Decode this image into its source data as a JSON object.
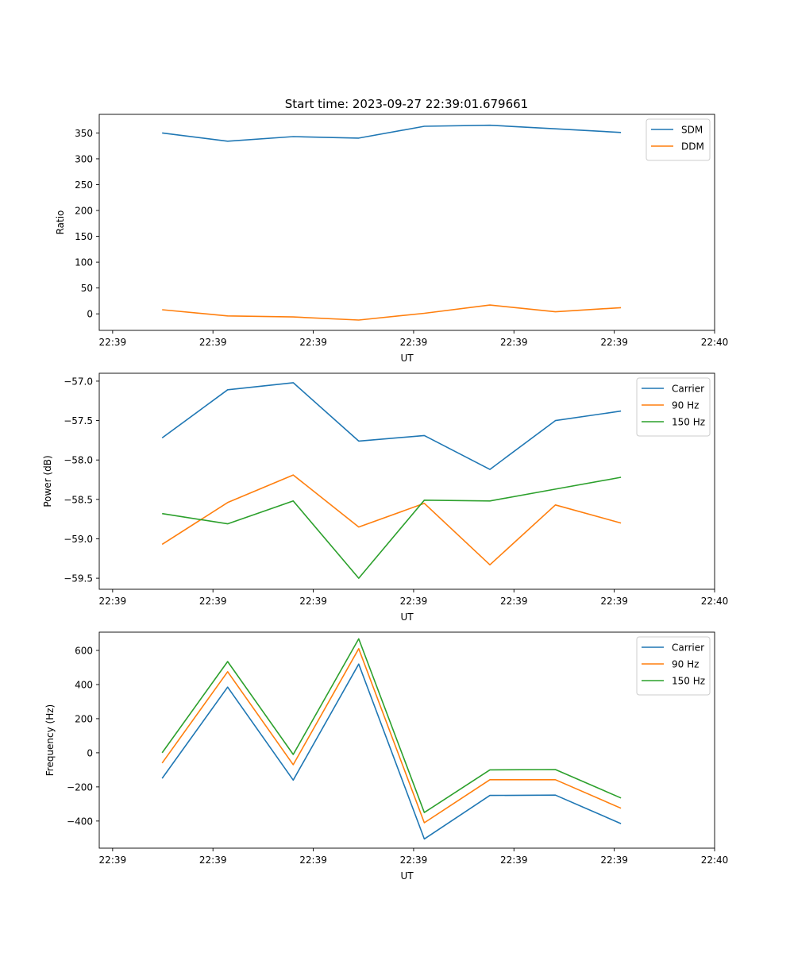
{
  "figure": {
    "title": "Start time: 2023-09-27 22:39:01.679661"
  },
  "colors": {
    "c1": "#1f77b4",
    "c2": "#ff7f0e",
    "c3": "#2ca02c"
  },
  "chart_data": [
    {
      "type": "line",
      "title": "Start time: 2023-09-27 22:39:01.679661",
      "xlabel": "UT",
      "ylabel": "Ratio",
      "xlim": [
        -0.5,
        8.7
      ],
      "ylim": [
        -32,
        386
      ],
      "x_ticks": [
        -0.3,
        1.2,
        2.7,
        4.2,
        5.7,
        7.2,
        8.7
      ],
      "x_tick_labels": [
        "22:39",
        "22:39",
        "22:39",
        "22:39",
        "22:39",
        "22:39",
        "22:40"
      ],
      "y_ticks": [
        0,
        50,
        100,
        150,
        200,
        250,
        300,
        350
      ],
      "y_tick_labels": [
        "0",
        "50",
        "100",
        "150",
        "200",
        "250",
        "300",
        "350"
      ],
      "legend_position": "top-right",
      "x": [
        0.44,
        1.42,
        2.4,
        3.38,
        4.36,
        5.34,
        6.32,
        7.3
      ],
      "series": [
        {
          "name": "SDM",
          "color": "#1f77b4",
          "values": [
            350,
            334,
            343,
            340,
            363,
            365,
            358,
            351
          ]
        },
        {
          "name": "DDM",
          "color": "#ff7f0e",
          "values": [
            8,
            -4,
            -6,
            -12,
            1,
            17,
            4,
            12
          ]
        }
      ]
    },
    {
      "type": "line",
      "title": "",
      "xlabel": "UT",
      "ylabel": "Power (dB)",
      "xlim": [
        -0.5,
        8.7
      ],
      "ylim": [
        -59.64,
        -56.9
      ],
      "x_ticks": [
        -0.3,
        1.2,
        2.7,
        4.2,
        5.7,
        7.2,
        8.7
      ],
      "x_tick_labels": [
        "22:39",
        "22:39",
        "22:39",
        "22:39",
        "22:39",
        "22:39",
        "22:40"
      ],
      "y_ticks": [
        -57.0,
        -57.5,
        -58.0,
        -58.5,
        -59.0,
        -59.5
      ],
      "y_tick_labels": [
        "−57.0",
        "−57.5",
        "−58.0",
        "−58.5",
        "−59.0",
        "−59.5"
      ],
      "legend_position": "top-right",
      "x": [
        0.44,
        1.42,
        2.4,
        3.38,
        4.36,
        5.34,
        6.32,
        7.3
      ],
      "series": [
        {
          "name": "Carrier",
          "color": "#1f77b4",
          "values": [
            -57.72,
            -57.11,
            -57.02,
            -57.76,
            -57.69,
            -58.12,
            -57.5,
            -57.38
          ]
        },
        {
          "name": "90 Hz",
          "color": "#ff7f0e",
          "values": [
            -59.07,
            -58.54,
            -58.19,
            -58.85,
            -58.55,
            -59.33,
            -58.57,
            -58.8
          ]
        },
        {
          "name": "150 Hz",
          "color": "#2ca02c",
          "values": [
            -58.68,
            -58.81,
            -58.52,
            -59.5,
            -58.51,
            -58.52,
            -58.37,
            -58.22
          ]
        }
      ]
    },
    {
      "type": "line",
      "title": "",
      "xlabel": "UT",
      "ylabel": "Frequency (Hz)",
      "xlim": [
        -0.5,
        8.7
      ],
      "ylim": [
        -559,
        707
      ],
      "x_ticks": [
        -0.3,
        1.2,
        2.7,
        4.2,
        5.7,
        7.2,
        8.7
      ],
      "x_tick_labels": [
        "22:39",
        "22:39",
        "22:39",
        "22:39",
        "22:39",
        "22:39",
        "22:40"
      ],
      "y_ticks": [
        600,
        400,
        200,
        0,
        -200,
        -400
      ],
      "y_tick_labels": [
        "600",
        "400",
        "200",
        "0",
        "−200",
        "−400"
      ],
      "legend_position": "top-right",
      "x": [
        0.44,
        1.42,
        2.4,
        3.38,
        4.36,
        5.34,
        6.32,
        7.3
      ],
      "series": [
        {
          "name": "Carrier",
          "color": "#1f77b4",
          "values": [
            -150,
            385,
            -160,
            520,
            -505,
            -250,
            -248,
            -415
          ]
        },
        {
          "name": "90 Hz",
          "color": "#ff7f0e",
          "values": [
            -60,
            475,
            -70,
            610,
            -410,
            -158,
            -158,
            -325
          ]
        },
        {
          "name": "150 Hz",
          "color": "#2ca02c",
          "values": [
            0,
            535,
            -10,
            668,
            -350,
            -100,
            -98,
            -265
          ]
        }
      ]
    }
  ]
}
